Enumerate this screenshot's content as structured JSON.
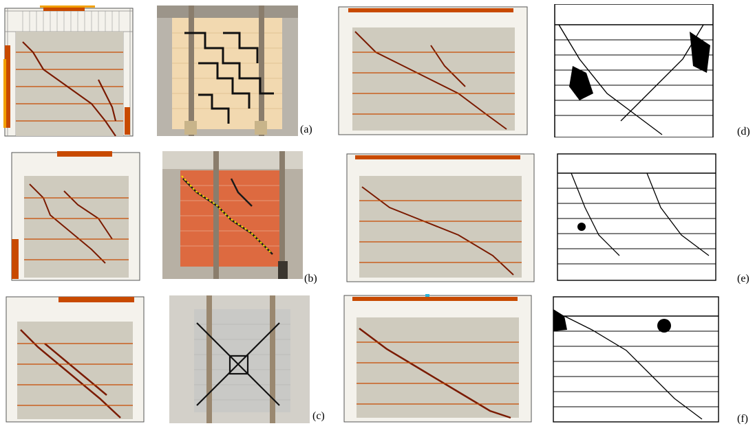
{
  "figure": {
    "panel_labels": {
      "a": "(a)",
      "b": "(b)",
      "c": "(c)",
      "d": "(d)",
      "e": "(e)",
      "f": "(f)"
    },
    "colors": {
      "fem_wall": "#cfcbbe",
      "fem_frame": "#ffffff",
      "crack_dark": "#6b1400",
      "crack_mid": "#c84a00",
      "crack_light": "#f2a000",
      "photo_a_wall": "#f2d9b0",
      "photo_b_wall": "#dd6a40",
      "photo_c_wall": "#c9c9c6",
      "concrete": "#c9c3b8",
      "sketch_line": "#000000"
    }
  }
}
